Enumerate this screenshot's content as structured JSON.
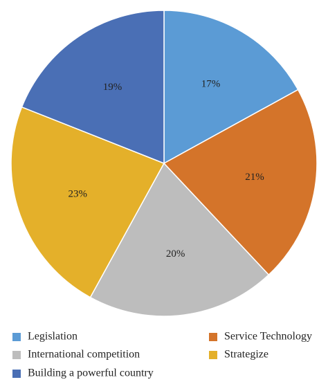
{
  "chart_data": {
    "type": "pie",
    "title": "",
    "slices": [
      {
        "label": "Legislation",
        "value": 17,
        "display": "17%",
        "color": "#5b9bd5"
      },
      {
        "label": "Service Technology",
        "value": 21,
        "display": "21%",
        "color": "#d4742a"
      },
      {
        "label": "International competition",
        "value": 20,
        "display": "20%",
        "color": "#bdbdbd"
      },
      {
        "label": "Strategize",
        "value": 23,
        "display": "23%",
        "color": "#e4b02a"
      },
      {
        "label": "Building a powerful country",
        "value": 19,
        "display": "19%",
        "color": "#4a6fb5"
      }
    ],
    "legend_position": "bottom",
    "start_angle": "12 o'clock",
    "direction": "clockwise"
  }
}
